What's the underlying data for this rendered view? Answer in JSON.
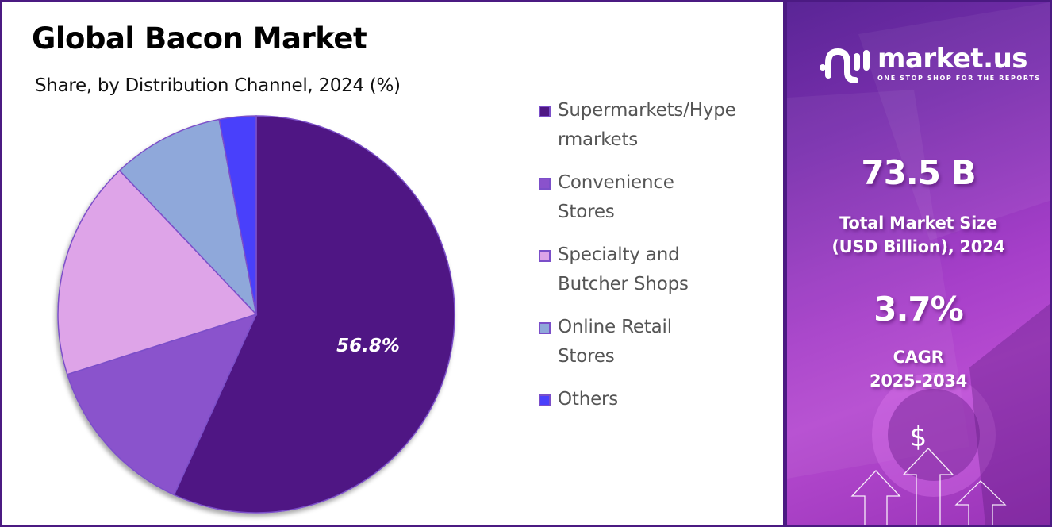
{
  "header": {
    "title": "Global Bacon Market",
    "subtitle": "Share, by Distribution Channel, 2024 (%)"
  },
  "chart_data": {
    "type": "pie",
    "title": "Global Bacon Market",
    "subtitle": "Share, by Distribution Channel, 2024 (%)",
    "categories": [
      "Supermarkets/Hypermarkets",
      "Convenience Stores",
      "Specialty and Butcher Shops",
      "Online Retail Stores",
      "Others"
    ],
    "values": [
      56.8,
      13.3,
      17.8,
      9.1,
      3.0
    ],
    "colors": [
      "#4f1784",
      "#8a52cc",
      "#dea4e8",
      "#8fa8da",
      "#4a40fb"
    ],
    "data_labels": [
      {
        "category": "Supermarkets/Hypermarkets",
        "text": "56.8%"
      }
    ],
    "start_angle": "12 o'clock, clockwise",
    "legend_position": "right"
  },
  "pie_label": "56.8%",
  "legend": {
    "items": [
      {
        "label": "Supermarkets/Hypermarkets",
        "color": "#4f1784"
      },
      {
        "label": "Convenience Stores",
        "color": "#8a52cc"
      },
      {
        "label": "Specialty and Butcher Shops",
        "color": "#dea4e8"
      },
      {
        "label": "Online Retail Stores",
        "color": "#8fa8da"
      },
      {
        "label": "Others",
        "color": "#4a40fb"
      }
    ]
  },
  "sidebar": {
    "brand": "market.us",
    "tagline": "ONE STOP SHOP FOR THE REPORTS",
    "market_size_value": "73.5 B",
    "market_size_label_1": "Total Market Size",
    "market_size_label_2": "(USD Billion), 2024",
    "cagr_value": "3.7%",
    "cagr_label_1": "CAGR",
    "cagr_label_2": "2025-2034",
    "dollar_symbol": "$"
  },
  "colors": {
    "frame": "#4b1a82",
    "panel_gradient_start": "#5a2596",
    "panel_gradient_end": "#b54ad0"
  }
}
